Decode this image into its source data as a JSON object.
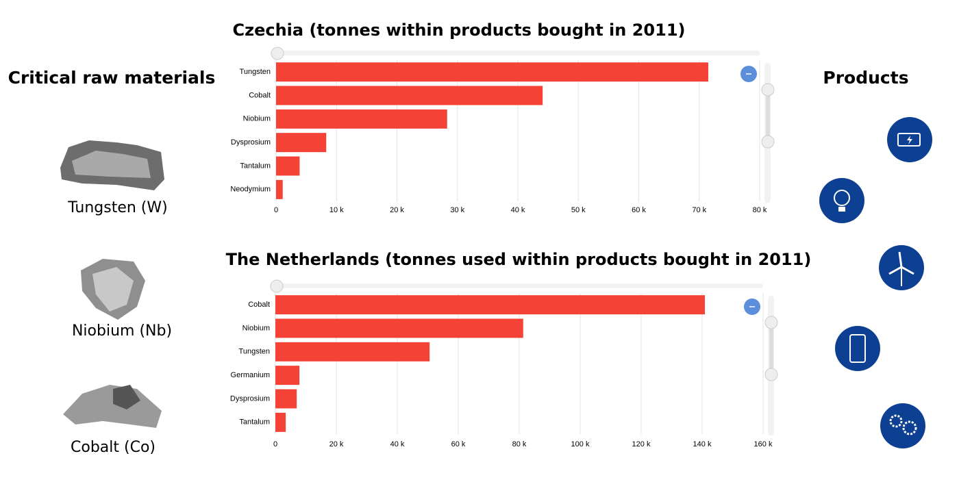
{
  "left_heading": "Critical raw materials",
  "minerals": [
    "Tungsten (W)",
    "Niobium (Nb)",
    "Cobalt (Co)"
  ],
  "right_heading": "Products",
  "chart_data": [
    {
      "type": "bar",
      "orientation": "horizontal",
      "title": "Czechia (tonnes within products bought in 2011)",
      "categories": [
        "Tungsten",
        "Cobalt",
        "Niobium",
        "Dysprosium",
        "Tantalum",
        "Neodymium"
      ],
      "values": [
        71500,
        44100,
        28300,
        8300,
        3900,
        1100
      ],
      "color": "#f44336",
      "xlim": [
        0,
        80000
      ],
      "xticks": [
        0,
        {
          "value": 10000,
          "label": "10 k"
        },
        {
          "value": 20000,
          "label": "20 k"
        },
        {
          "value": 30000,
          "label": "30 k"
        },
        {
          "value": 40000,
          "label": "40 k"
        },
        {
          "value": 50000,
          "label": "50 k"
        },
        {
          "value": 60000,
          "label": "60 k"
        },
        {
          "value": 70000,
          "label": "70 k"
        },
        {
          "value": 80000,
          "label": "80 k"
        }
      ],
      "grid": true
    },
    {
      "type": "bar",
      "orientation": "horizontal",
      "title": "The Netherlands (tonnes used within products bought in 2011)",
      "categories": [
        "Cobalt",
        "Niobium",
        "Tungsten",
        "Germanium",
        "Dysprosium",
        "Tantalum"
      ],
      "values": [
        140900,
        81300,
        50600,
        7900,
        7000,
        3400
      ],
      "color": "#f44336",
      "xlim": [
        0,
        160000
      ],
      "xticks": [
        0,
        {
          "value": 20000,
          "label": "20 k"
        },
        {
          "value": 40000,
          "label": "40 k"
        },
        {
          "value": 60000,
          "label": "60 k"
        },
        {
          "value": 80000,
          "label": "80 k"
        },
        {
          "value": 100000,
          "label": "100 k"
        },
        {
          "value": 120000,
          "label": "120 k"
        },
        {
          "value": 140000,
          "label": "140 k"
        },
        {
          "value": 160000,
          "label": "160 k"
        }
      ],
      "grid": true
    }
  ]
}
